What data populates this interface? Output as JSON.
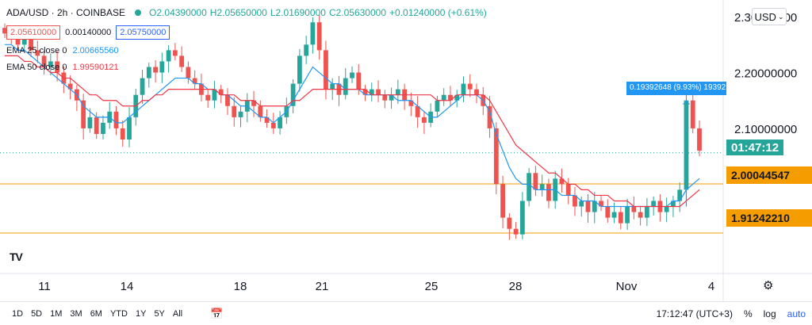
{
  "header": {
    "symbol": "ADA/USD · 2h · COINBASE",
    "open": "O2.04390000",
    "high": "H2.05650000",
    "low": "L2.01690000",
    "close": "C2.05630000",
    "change": "+0.01240000 (+0.61%)"
  },
  "quote": {
    "sell": "2.05610000",
    "spread": "0.00140000",
    "buy": "2.05750000"
  },
  "indicators": [
    {
      "label": "EMA 25 close 0",
      "value": "2.00665560",
      "color": "#2196f3"
    },
    {
      "label": "EMA 50 close 0",
      "value": "1.99590121",
      "color": "#f23645"
    }
  ],
  "currency_button": "USD",
  "price_scale": {
    "ticks": [
      "2.30000000",
      "2.20000000",
      "2.10000000"
    ],
    "countdown": "01:47:12",
    "level_upper": "2.00044547",
    "level_lower": "1.91242210",
    "level_color": "#f59d00",
    "countdown_color": "#26a69a"
  },
  "measure": {
    "label": "0.19392648 (9.93%) 19392"
  },
  "time_axis": {
    "ticks": [
      "11",
      "14",
      "18",
      "21",
      "25",
      "28",
      "Nov",
      "4"
    ]
  },
  "timeframes": [
    "1D",
    "5D",
    "1M",
    "3M",
    "6M",
    "YTD",
    "1Y",
    "5Y",
    "All"
  ],
  "bottom_right": {
    "time": "17:12:47 (UTC+3)",
    "percent": "%",
    "log": "log",
    "auto": "auto"
  },
  "logo": "TV",
  "chart_data": {
    "type": "candlestick",
    "y_range": [
      1.84,
      2.33
    ],
    "horizontal_levels": [
      2.00044547,
      1.9124221
    ],
    "price_line": 2.0563,
    "up_color": "#26a69a",
    "down_color": "#ef5350",
    "closes": [
      2.27,
      2.26,
      2.25,
      2.27,
      2.24,
      2.23,
      2.21,
      2.22,
      2.2,
      2.18,
      2.17,
      2.15,
      2.1,
      2.12,
      2.09,
      2.11,
      2.13,
      2.1,
      2.08,
      2.12,
      2.16,
      2.19,
      2.21,
      2.2,
      2.22,
      2.24,
      2.23,
      2.21,
      2.19,
      2.18,
      2.16,
      2.15,
      2.17,
      2.16,
      2.14,
      2.12,
      2.13,
      2.15,
      2.14,
      2.12,
      2.11,
      2.1,
      2.12,
      2.14,
      2.18,
      2.23,
      2.25,
      2.29,
      2.24,
      2.17,
      2.18,
      2.16,
      2.19,
      2.2,
      2.17,
      2.16,
      2.17,
      2.16,
      2.15,
      2.16,
      2.17,
      2.15,
      2.14,
      2.12,
      2.11,
      2.13,
      2.15,
      2.16,
      2.15,
      2.16,
      2.18,
      2.17,
      2.16,
      2.14,
      2.1,
      2.0,
      1.94,
      1.92,
      1.91,
      1.97,
      2.02,
      1.99,
      2.0,
      1.97,
      2.01,
      2.0,
      1.98,
      1.96,
      1.97,
      1.95,
      1.97,
      1.96,
      1.94,
      1.95,
      1.93,
      1.96,
      1.95,
      1.94,
      1.96,
      1.97,
      1.95,
      1.96,
      1.97,
      1.99,
      2.15,
      2.1,
      2.06
    ],
    "ema25": [
      2.25,
      2.25,
      2.24,
      2.24,
      2.23,
      2.22,
      2.21,
      2.2,
      2.19,
      2.18,
      2.17,
      2.16,
      2.14,
      2.13,
      2.12,
      2.12,
      2.12,
      2.11,
      2.11,
      2.12,
      2.13,
      2.14,
      2.15,
      2.16,
      2.17,
      2.18,
      2.19,
      2.19,
      2.19,
      2.18,
      2.18,
      2.17,
      2.17,
      2.16,
      2.16,
      2.15,
      2.14,
      2.14,
      2.13,
      2.12,
      2.12,
      2.11,
      2.12,
      2.13,
      2.15,
      2.17,
      2.19,
      2.21,
      2.2,
      2.19,
      2.18,
      2.18,
      2.17,
      2.17,
      2.17,
      2.16,
      2.16,
      2.16,
      2.16,
      2.16,
      2.15,
      2.15,
      2.15,
      2.14,
      2.13,
      2.12,
      2.12,
      2.13,
      2.14,
      2.15,
      2.16,
      2.16,
      2.16,
      2.15,
      2.13,
      2.09,
      2.06,
      2.03,
      2.01,
      2.0,
      2.0,
      1.99,
      1.99,
      1.99,
      1.99,
      1.98,
      1.98,
      1.98,
      1.97,
      1.97,
      1.97,
      1.96,
      1.96,
      1.96,
      1.96,
      1.96,
      1.96,
      1.96,
      1.96,
      1.96,
      1.96,
      1.96,
      1.97,
      1.97,
      1.99,
      2.0,
      2.01
    ],
    "ema50": [
      2.23,
      2.23,
      2.23,
      2.22,
      2.22,
      2.21,
      2.21,
      2.2,
      2.2,
      2.19,
      2.19,
      2.18,
      2.17,
      2.16,
      2.16,
      2.15,
      2.15,
      2.15,
      2.14,
      2.14,
      2.14,
      2.15,
      2.15,
      2.16,
      2.16,
      2.17,
      2.17,
      2.17,
      2.17,
      2.17,
      2.17,
      2.17,
      2.17,
      2.16,
      2.16,
      2.16,
      2.15,
      2.15,
      2.15,
      2.14,
      2.14,
      2.14,
      2.14,
      2.14,
      2.15,
      2.15,
      2.16,
      2.17,
      2.17,
      2.17,
      2.17,
      2.17,
      2.17,
      2.17,
      2.17,
      2.17,
      2.16,
      2.16,
      2.16,
      2.16,
      2.16,
      2.16,
      2.16,
      2.16,
      2.16,
      2.16,
      2.15,
      2.15,
      2.15,
      2.16,
      2.16,
      2.16,
      2.16,
      2.16,
      2.15,
      2.13,
      2.11,
      2.09,
      2.07,
      2.06,
      2.05,
      2.04,
      2.03,
      2.02,
      2.02,
      2.01,
      2.0,
      2.0,
      1.99,
      1.99,
      1.98,
      1.98,
      1.98,
      1.97,
      1.97,
      1.97,
      1.96,
      1.96,
      1.96,
      1.96,
      1.96,
      1.96,
      1.96,
      1.96,
      1.97,
      1.98,
      1.99
    ]
  }
}
